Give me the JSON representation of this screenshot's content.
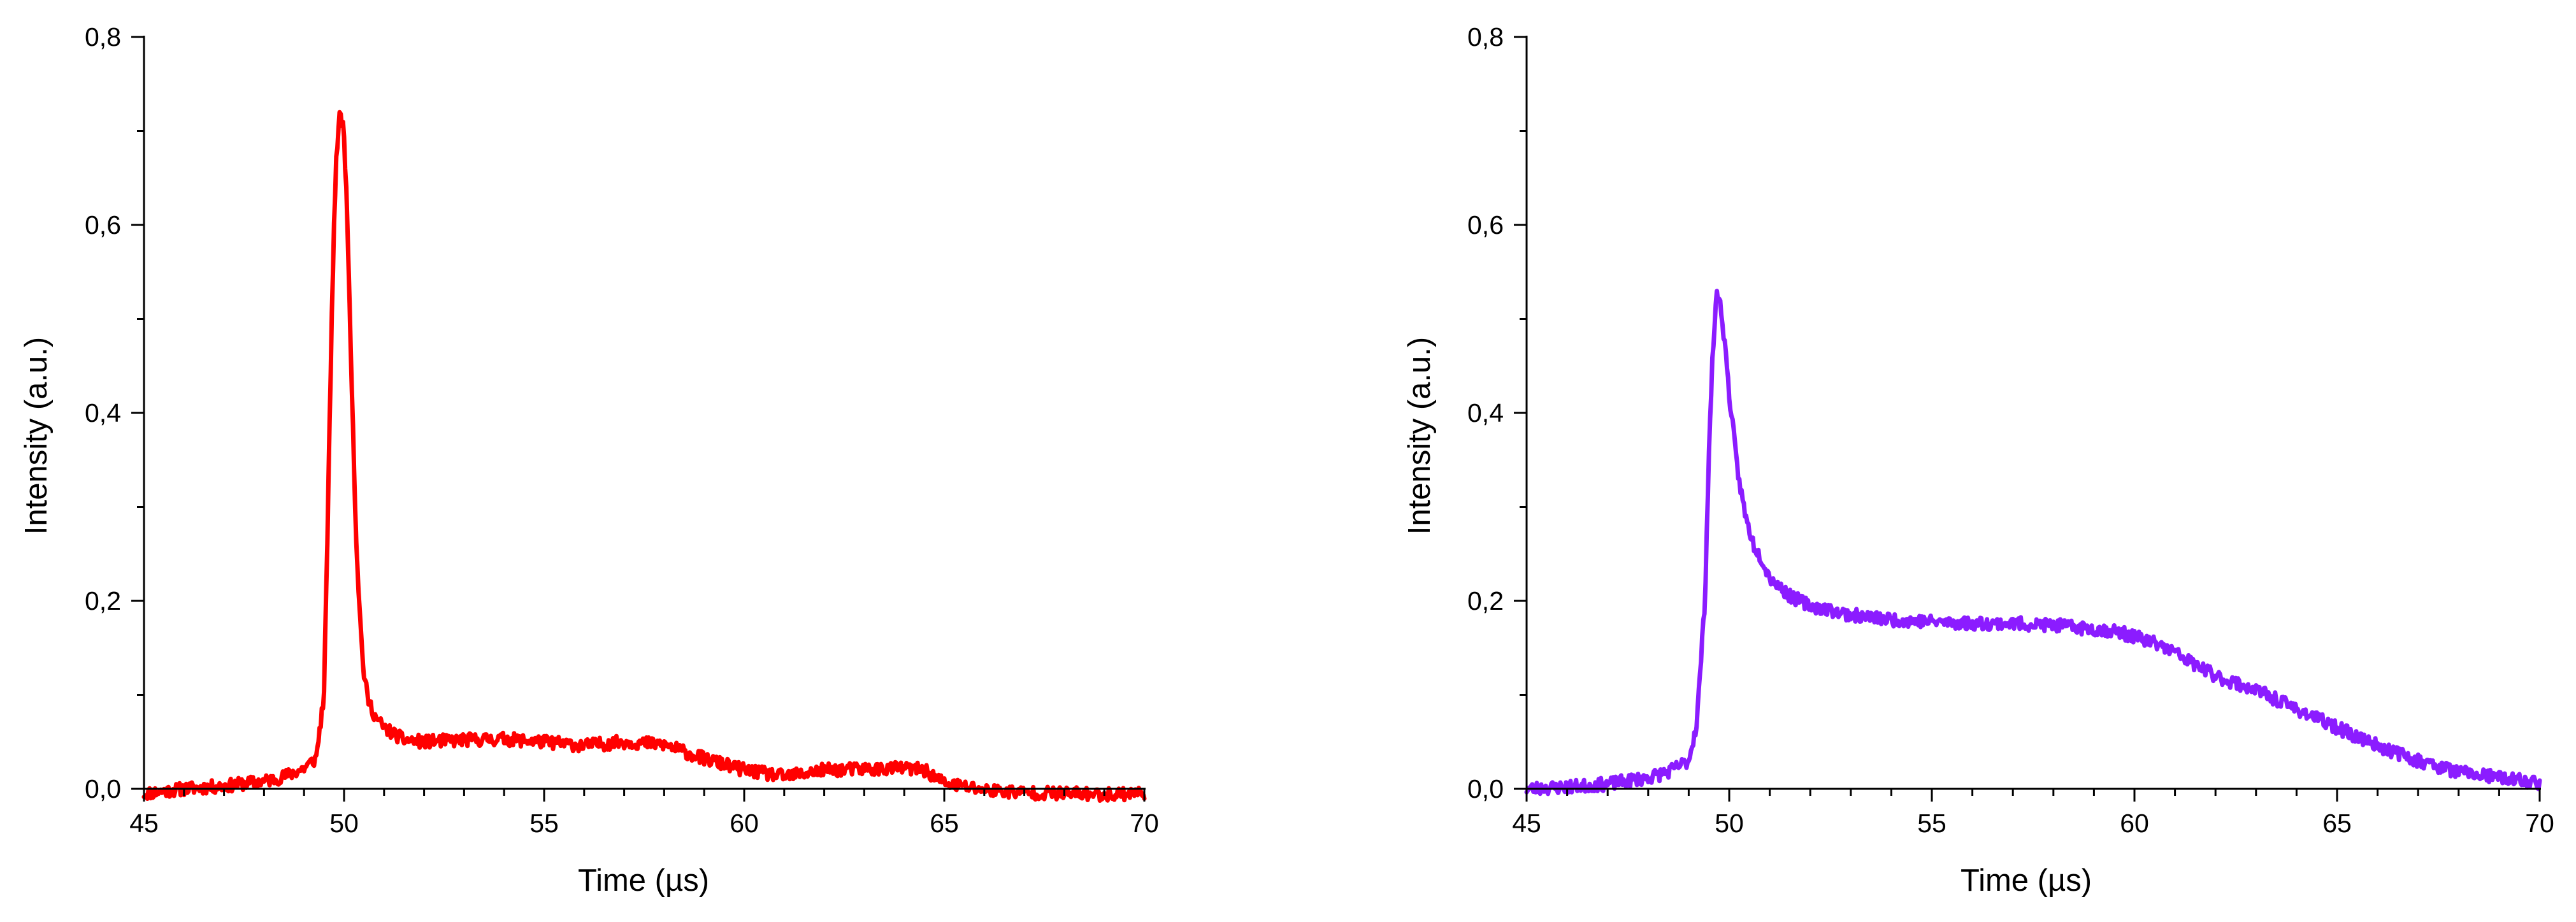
{
  "chart_data": [
    {
      "type": "line",
      "title": "",
      "xlabel": "Time (µs)",
      "ylabel": "Intensity (a.u.)",
      "xlim": [
        45,
        70
      ],
      "ylim": [
        0,
        0.8
      ],
      "x_ticks": [
        "45",
        "50",
        "55",
        "60",
        "65",
        "70"
      ],
      "y_ticks": [
        "0,0",
        "0,2",
        "0,4",
        "0,6",
        "0,8"
      ],
      "grid": false,
      "legend": "none",
      "series": [
        {
          "color": "#ff0000",
          "x": [
            45.0,
            46.0,
            47.0,
            48.0,
            48.5,
            49.0,
            49.3,
            49.5,
            49.6,
            49.7,
            49.8,
            49.9,
            50.0,
            50.1,
            50.2,
            50.3,
            50.4,
            50.5,
            50.6,
            50.8,
            51.0,
            51.3,
            51.5,
            52.0,
            53.0,
            54.0,
            55.0,
            56.0,
            57.0,
            58.0,
            59.0,
            60.0,
            61.0,
            62.0,
            63.0,
            64.0,
            64.5,
            65.0,
            66.0,
            67.0,
            68.0,
            69.0,
            70.0
          ],
          "y": [
            -0.005,
            0.0,
            0.003,
            0.008,
            0.013,
            0.022,
            0.032,
            0.1,
            0.3,
            0.52,
            0.67,
            0.72,
            0.7,
            0.58,
            0.42,
            0.27,
            0.18,
            0.12,
            0.095,
            0.075,
            0.065,
            0.057,
            0.052,
            0.05,
            0.052,
            0.053,
            0.05,
            0.046,
            0.05,
            0.047,
            0.032,
            0.02,
            0.013,
            0.02,
            0.021,
            0.022,
            0.02,
            0.006,
            -0.001,
            -0.004,
            -0.005,
            -0.006,
            -0.004
          ],
          "noise": 0.007,
          "noise_seed": 11
        }
      ]
    },
    {
      "type": "line",
      "title": "",
      "xlabel": "Time (µs)",
      "ylabel": "Intensity (a.u.)",
      "xlim": [
        45,
        70
      ],
      "ylim": [
        0,
        0.8
      ],
      "x_ticks": [
        "45",
        "50",
        "55",
        "60",
        "65",
        "70"
      ],
      "y_ticks": [
        "0,0",
        "0,2",
        "0,4",
        "0,6",
        "0,8"
      ],
      "grid": false,
      "legend": "none",
      "series": [
        {
          "color": "#8b1cff",
          "x": [
            45.0,
            46.0,
            47.0,
            48.0,
            48.5,
            49.0,
            49.2,
            49.4,
            49.5,
            49.6,
            49.7,
            49.8,
            49.9,
            50.0,
            50.2,
            50.4,
            50.6,
            50.8,
            51.0,
            51.5,
            52.0,
            53.0,
            54.0,
            55.0,
            56.0,
            57.0,
            58.0,
            59.0,
            59.5,
            60.0,
            60.5,
            61.0,
            61.5,
            62.0,
            63.0,
            64.0,
            65.0,
            66.0,
            67.0,
            68.0,
            69.0,
            70.0
          ],
          "y": [
            0.0,
            0.002,
            0.005,
            0.012,
            0.018,
            0.03,
            0.07,
            0.2,
            0.36,
            0.47,
            0.53,
            0.51,
            0.47,
            0.42,
            0.34,
            0.29,
            0.26,
            0.245,
            0.225,
            0.205,
            0.195,
            0.185,
            0.18,
            0.178,
            0.176,
            0.176,
            0.174,
            0.17,
            0.168,
            0.162,
            0.155,
            0.145,
            0.132,
            0.12,
            0.105,
            0.085,
            0.065,
            0.046,
            0.03,
            0.018,
            0.012,
            0.006
          ],
          "noise": 0.007,
          "noise_seed": 23
        }
      ]
    }
  ]
}
